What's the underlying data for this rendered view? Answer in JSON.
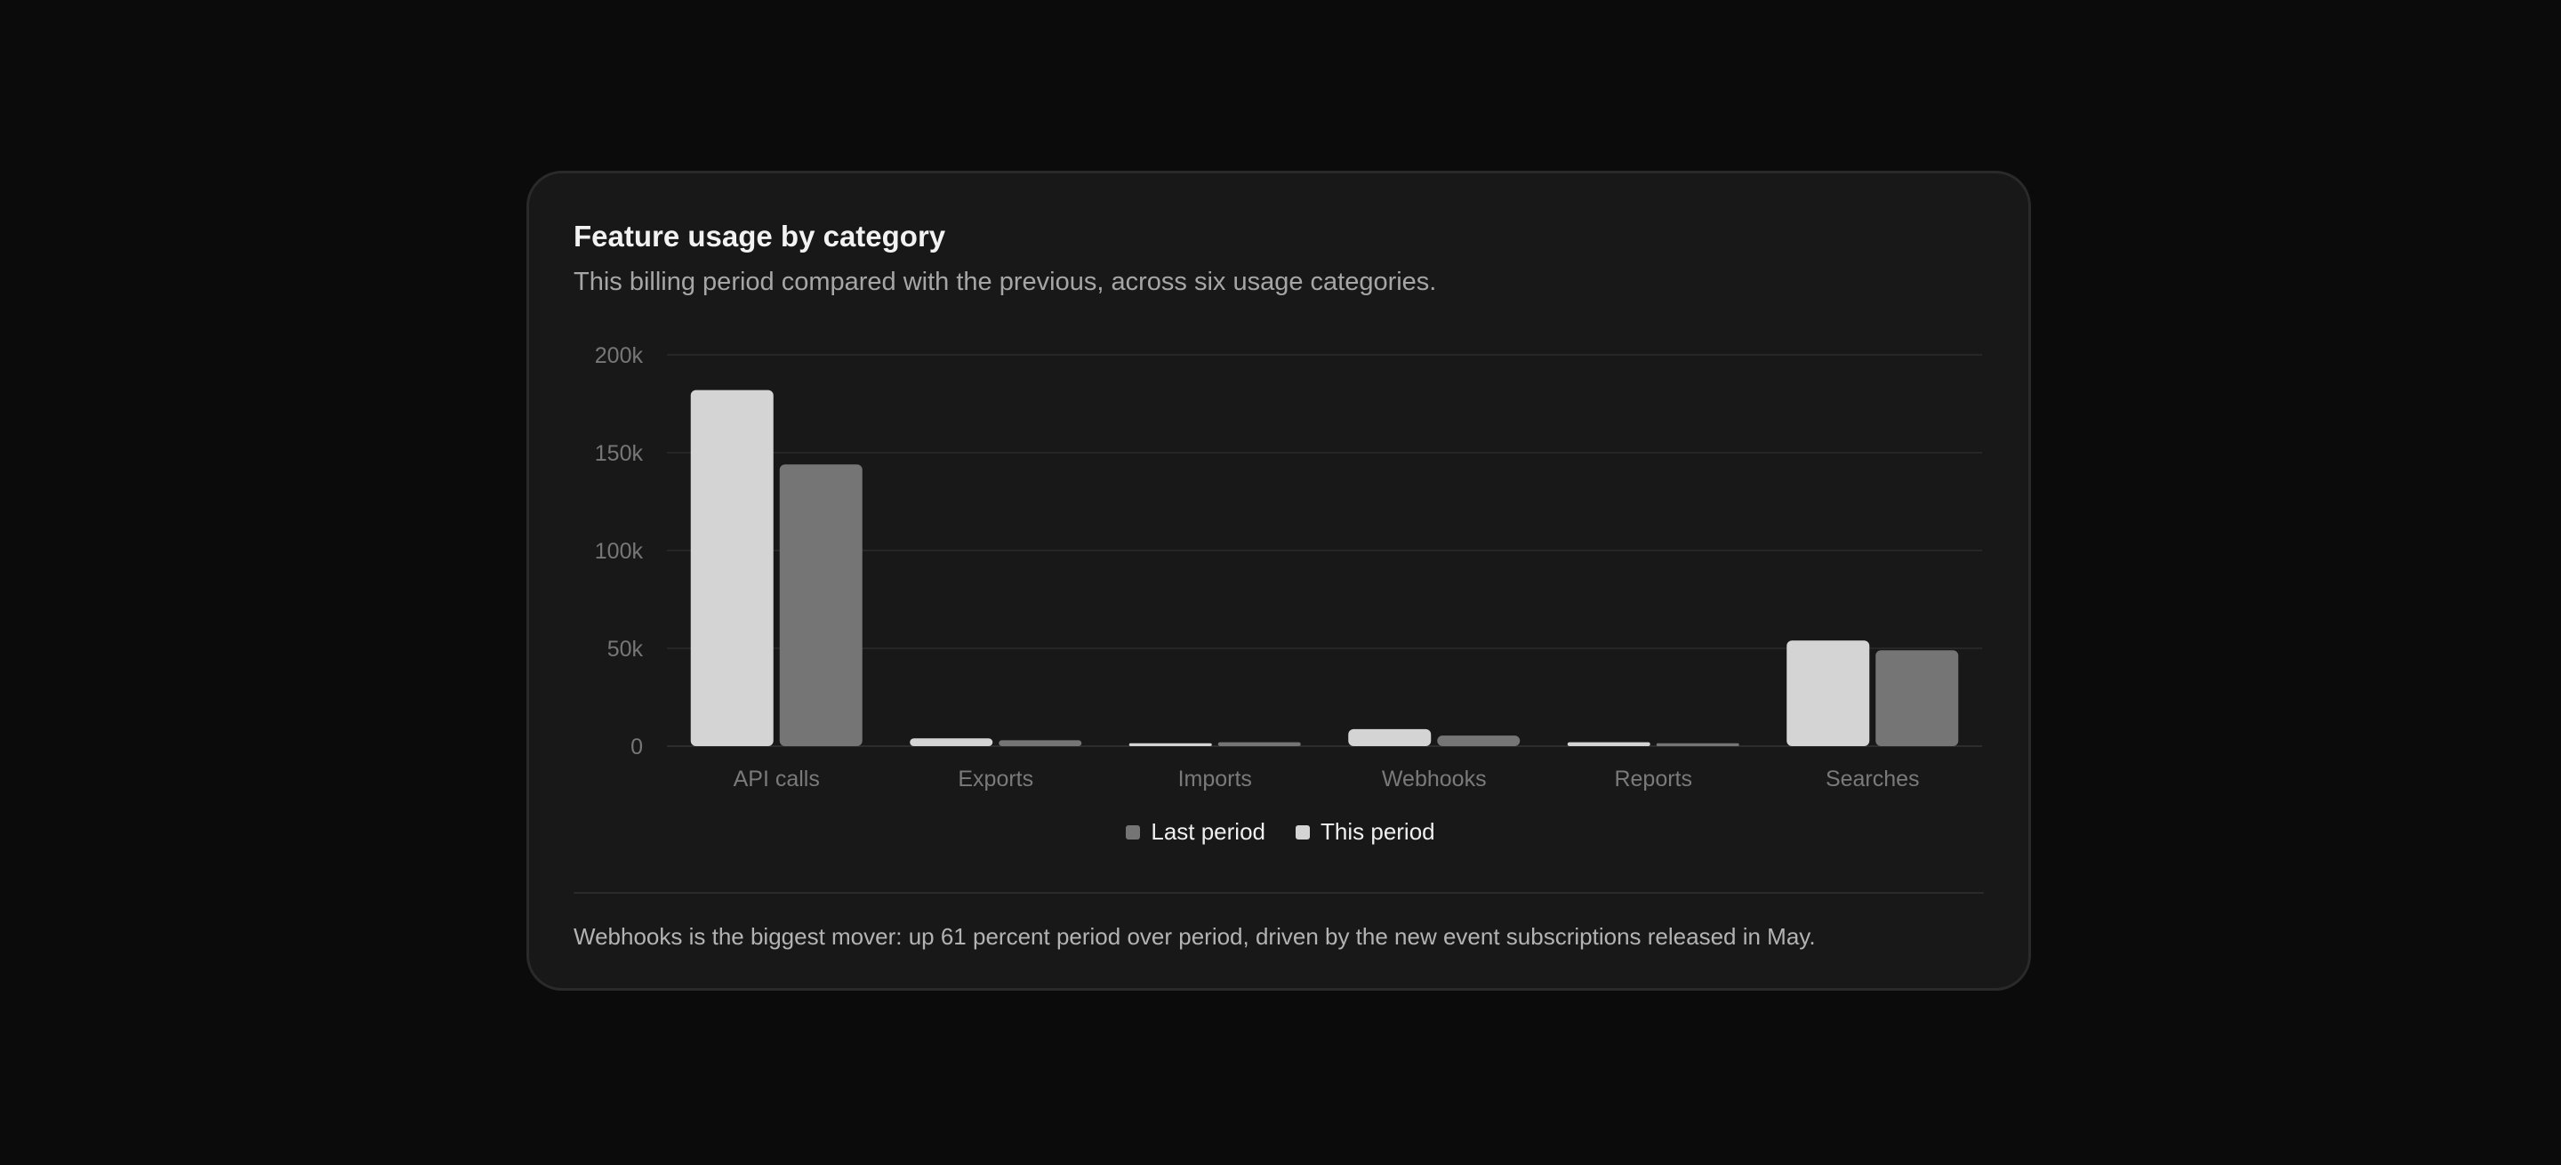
{
  "card": {
    "title": "Feature usage by category",
    "subtitle": "This billing period compared with the previous, across six usage categories.",
    "footnote": "Webhooks is the biggest mover: up 61 percent period over period, driven by the new event subscriptions released in May."
  },
  "legend": {
    "last_period": "Last period",
    "this_period": "This period"
  },
  "chart_data": {
    "type": "bar",
    "title": "Feature usage by category",
    "categories": [
      "API calls",
      "Exports",
      "Imports",
      "Webhooks",
      "Reports",
      "Searches"
    ],
    "series": [
      {
        "name": "This period",
        "color": "#d4d4d4",
        "values": [
          182000,
          4000,
          1500,
          8700,
          2000,
          54000
        ]
      },
      {
        "name": "Last period",
        "color": "#757575",
        "values": [
          144000,
          3000,
          2000,
          5400,
          1500,
          49000
        ]
      }
    ],
    "y_ticks": [
      0,
      50000,
      100000,
      150000,
      200000
    ],
    "y_tick_labels": [
      "0",
      "50k",
      "100k",
      "150k",
      "200k"
    ],
    "ylim": [
      0,
      200000
    ],
    "xlabel": "",
    "ylabel": "",
    "grid": true,
    "legend_position": "bottom-center"
  }
}
